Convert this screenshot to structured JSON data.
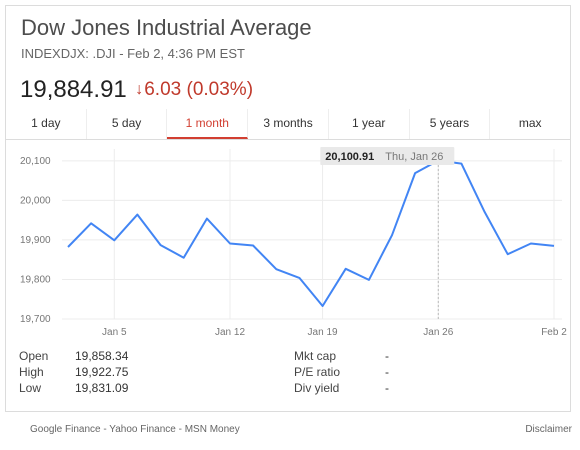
{
  "header": {
    "title": "Dow Jones Industrial Average",
    "subtitle": "INDEXDJX: .DJI - Feb 2, 4:36 PM EST",
    "price": "19,884.91",
    "change_arrow": "↓",
    "change": "6.03 (0.03%)",
    "change_color": "#c0392b"
  },
  "tabs": [
    {
      "label": "1 day",
      "active": false
    },
    {
      "label": "5 day",
      "active": false
    },
    {
      "label": "1 month",
      "active": true
    },
    {
      "label": "3 months",
      "active": false
    },
    {
      "label": "1 year",
      "active": false
    },
    {
      "label": "5 years",
      "active": false
    },
    {
      "label": "max",
      "active": false
    }
  ],
  "tooltip": {
    "value": "20,100.91",
    "date": "Thu, Jan 26"
  },
  "chart_data": {
    "type": "line",
    "x": [
      "Jan 3",
      "Jan 4",
      "Jan 5",
      "Jan 6",
      "Jan 9",
      "Jan 10",
      "Jan 11",
      "Jan 12",
      "Jan 13",
      "Jan 17",
      "Jan 18",
      "Jan 19",
      "Jan 20",
      "Jan 23",
      "Jan 24",
      "Jan 25",
      "Jan 26",
      "Jan 27",
      "Jan 30",
      "Jan 31",
      "Feb 1",
      "Feb 2"
    ],
    "values": [
      19882,
      19942,
      19899,
      19964,
      19887,
      19855,
      19954,
      19891,
      19886,
      19826,
      19804,
      19733,
      19827,
      19799,
      19912,
      20069,
      20100.91,
      20093,
      19971,
      19864,
      19891,
      19884.91
    ],
    "x_tick_labels": [
      "Jan 5",
      "Jan 12",
      "Jan 19",
      "Jan 26",
      "Feb 2"
    ],
    "y_tick_labels": [
      "20,100",
      "20,000",
      "19,900",
      "19,800",
      "19,700"
    ],
    "y_ticks": [
      20100,
      20000,
      19900,
      19800,
      19700
    ],
    "ylim": [
      19700,
      20130
    ],
    "highlight_index": 16,
    "line_color": "#4285f4",
    "grid": true
  },
  "stats": {
    "left": [
      {
        "label": "Open",
        "value": "19,858.34"
      },
      {
        "label": "High",
        "value": "19,922.75"
      },
      {
        "label": "Low",
        "value": "19,831.09"
      }
    ],
    "right": [
      {
        "label": "Mkt cap",
        "value": "-"
      },
      {
        "label": "P/E ratio",
        "value": "-"
      },
      {
        "label": "Div yield",
        "value": "-"
      }
    ]
  },
  "footer": {
    "sources": "Google Finance - Yahoo Finance - MSN Money",
    "disclaimer": "Disclaimer"
  }
}
